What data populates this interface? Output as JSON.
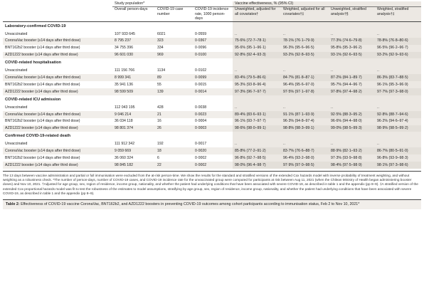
{
  "table": {
    "group_headers": {
      "study_population": "Study population*",
      "vaccine_effectiveness": "Vaccine effectiveness, % (95% CI)"
    },
    "columns": [
      "Overall person-days",
      "COVID-19 case number",
      "COVID-19 incidence rate, 1000 person-days",
      "Unweighted, adjusted for all covariates†",
      "Weighted, adjusted for all covariates†‡",
      "Unweighted, stratified analysis†§",
      "Weighted, stratified analysis†‡"
    ],
    "sections": [
      {
        "title": "Laboratory-confirmed COVID-19",
        "rows": [
          {
            "label": "Unvaccinated",
            "cells": [
              "107 933 645",
              "6021",
              "0·0559",
              "..",
              "..",
              "..",
              ".."
            ]
          },
          {
            "label": "CoronaVac booster (≥14 days after third dose)",
            "cells": [
              "8 795 237",
              "323",
              "0·0367",
              "75·6% (72·7–78·1)",
              "78·1% (76·1–79·9)",
              "77·3% (74·6–79·8)",
              "78·8% (76·8–80·6)"
            ]
          },
          {
            "label": "BNT162b2 booster (≥14 days after third dose)",
            "cells": [
              "34 755 396",
              "334",
              "0·0096",
              "95·6% (95·1–96·1)",
              "96·3% (95·6–96·5)",
              "95·8% (95·3–96·2)",
              "96·5% (96·2–96·7)"
            ]
          },
          {
            "label": "AZD1222 booster (≥14 days after third dose)",
            "cells": [
              "96 601 030",
              "969",
              "0·0100",
              "92·8% (92·4–93·3)",
              "93·2% (92·8–93·5)",
              "93·1% (92·6–93·5)",
              "93·2% (92·9–93·6)"
            ]
          }
        ]
      },
      {
        "title": "COVID-related hospitalisation",
        "rows": [
          {
            "label": "Unvaccinated",
            "cells": [
              "111 156 766",
              "1134",
              "0·0102",
              "..",
              "..",
              "..",
              ".."
            ]
          },
          {
            "label": "CoronaVac booster (≥14 days after third dose)",
            "cells": [
              "8 999 341",
              "89",
              "0·0099",
              "83·4% (79·5–86·6)",
              "84·7% (81·8–87·1)",
              "87·2% (84·1–89·7)",
              "86·3% (83·7–88·5)"
            ]
          },
          {
            "label": "BNT162b2 booster (≥14 days after third dose)",
            "cells": [
              "35 941 136",
              "55",
              "0·0015",
              "95·3% (93·8–96·4)",
              "96·4% (95·6–97·0)",
              "95·7% (94·4–96·7)",
              "96·1% (95·3–96·9)"
            ]
          },
          {
            "label": "AZD1222 booster (≥14 days after third dose)",
            "cells": [
              "98 599 509",
              "139",
              "0·0014",
              "97·3% (96·7–97·7)",
              "97·5% (97·1–97·8)",
              "97·8% (97·4–98·2)",
              "97·7% (97·3–98·0)"
            ]
          }
        ]
      },
      {
        "title": "COVID-related ICU admission",
        "rows": [
          {
            "label": "Unvaccinated",
            "cells": [
              "112 043 195",
              "428",
              "0·0038",
              "..",
              "..",
              "..",
              ".."
            ]
          },
          {
            "label": "CoronaVac booster (≥14 days after third dose)",
            "cells": [
              "9 046 214",
              "21",
              "0·0023",
              "89·4% (83·6–93·1)",
              "91·1% (87·1–93·9)",
              "92·5% (88·3–95·2)",
              "92·8% (88·7–94·6)"
            ]
          },
          {
            "label": "BNT162b2 booster (≥14 days after third dose)",
            "cells": [
              "36 034 118",
              "16",
              "0·0004",
              "96·1% (93·7–97·7)",
              "96·3% (94·8–97·4)",
              "96·6% (94·4–98·0)",
              "96·2% (94·6–97·4)"
            ]
          },
          {
            "label": "AZD1222 booster (≥14 days after third dose)",
            "cells": [
              "98 801 374",
              "26",
              "0·0003",
              "98·6% (98·0–99·1)",
              "98·8% (98·3–99·1)",
              "99·0% (98·5–99·3)",
              "98·9% (98·5–99·2)"
            ]
          }
        ]
      },
      {
        "title": "Confirmed COVID-19-related death",
        "rows": [
          {
            "label": "Unvaccinated",
            "cells": [
              "111 912 342",
              "192",
              "0·0017",
              "..",
              "..",
              "..",
              ".."
            ]
          },
          {
            "label": "CoronaVac booster (≥14 days after third dose)",
            "cells": [
              "9 059 669",
              "18",
              "0·0020",
              "85·8% (77·2–91·2)",
              "83·7% (76·6–88·7)",
              "88·9% (82·1–93·2)",
              "86·7% (80·5–91·0)"
            ]
          },
          {
            "label": "BNT162b2 booster (≥14 days after third dose)",
            "cells": [
              "36 060 324",
              "6",
              "0·0002",
              "96·8% (92·7–98·5)",
              "96·4% (93·2–98·0)",
              "97·3% (93·9–98·8)",
              "96·8% (93·9–98·3)"
            ]
          },
          {
            "label": "AZD1222 booster (≥14 days after third dose)",
            "cells": [
              "98 845 182",
              "22",
              "0·0002",
              "98·0% (96·4–98·7)",
              "97·9% (97·0–98·5)",
              "98·4% (97·5–98·9)",
              "98·1% (97·3–98·6)"
            ]
          }
        ]
      }
    ]
  },
  "footnote": "The 13 days between vaccine administration and partial or full immunisation were excluded from the at-risk person-time. We show the results for the standard and stratified versions of the extended Cox hazards model with inverse probability of treatment weighting, and without weighting as a robustness check. *The number of person-days, number of COVID-19 cases, and COVID-19 incidence rate for the unvaccinated group were computed for participants at risk between Aug 11, 2021 (when the Chilean Ministry of Health began administering booster doses) and Nov 10, 2021. †Adjusted for age group, sex, region of residence, income group, nationality, and whether the patient had underlying conditions that have been associated with severe COVID-19, as described in table 1 and the appendix (pp 8–9). ‡A stratified version of the extended Cox proportional hazards model was fit to test the robustness of the estimates to model assumptions, stratifying by age group, sex, region of residence, income group, nationality, and whether the patient had underlying conditions that have been associated with severe COVID-19, as described in table 1 and the appendix (pp 8–9).",
  "caption": {
    "label": "Table 2:",
    "text": " Effectiveness of COVID-19 vaccine CoronaVac, BNT162b2, and AZD1222 boosters in preventing COVID-19 outcomes among cohort participants according to immunisation status, Feb 2 to Nov 10, 2021*"
  }
}
